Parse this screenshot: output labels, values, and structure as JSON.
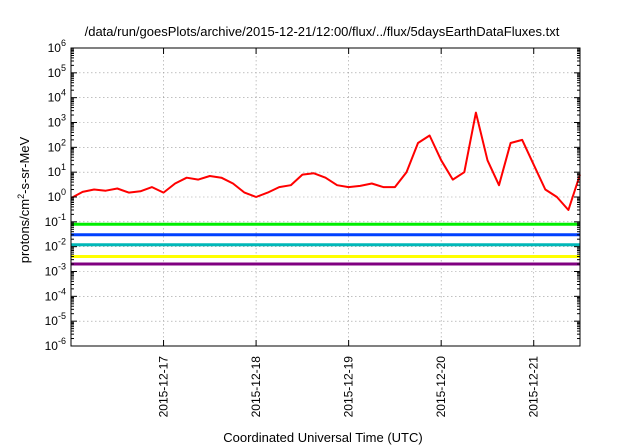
{
  "chart_data": {
    "type": "line",
    "title": "/data/run/goesPlots/archive/2015-12-21/12:00/flux/../flux/5daysEarthDataFluxes.txt",
    "xlabel": "Coordinated Universal Time (UTC)",
    "ylabel": {
      "prefix": "protons/cm",
      "sup": "2",
      "suffix": "-s-sr-MeV"
    },
    "y_scale": "log",
    "ylim_exponents": [
      -6,
      6
    ],
    "y_tick_base": "10",
    "y_tick_exponents": [
      "-6",
      "-5",
      "-4",
      "-3",
      "-2",
      "-1",
      "0",
      "1",
      "2",
      "3",
      "4",
      "5",
      "6"
    ],
    "xlim": [
      "2015-12-16T00:00",
      "2015-12-21T12:00"
    ],
    "x_ticks": [
      {
        "label": "2015-12-17",
        "value": "2015-12-17T00:00"
      },
      {
        "label": "2015-12-18",
        "value": "2015-12-18T00:00"
      },
      {
        "label": "2015-12-19",
        "value": "2015-12-19T00:00"
      },
      {
        "label": "2015-12-20",
        "value": "2015-12-20T00:00"
      },
      {
        "label": "2015-12-21",
        "value": "2015-12-21T00:00"
      }
    ],
    "grid": true,
    "legend": "none",
    "series": [
      {
        "color": "#ff0000",
        "x": [
          "2015-12-16T00:00",
          "2015-12-16T03:00",
          "2015-12-16T06:00",
          "2015-12-16T09:00",
          "2015-12-16T12:00",
          "2015-12-16T15:00",
          "2015-12-16T18:00",
          "2015-12-16T21:00",
          "2015-12-17T00:00",
          "2015-12-17T03:00",
          "2015-12-17T06:00",
          "2015-12-17T09:00",
          "2015-12-17T12:00",
          "2015-12-17T15:00",
          "2015-12-17T18:00",
          "2015-12-17T21:00",
          "2015-12-18T00:00",
          "2015-12-18T03:00",
          "2015-12-18T06:00",
          "2015-12-18T09:00",
          "2015-12-18T12:00",
          "2015-12-18T15:00",
          "2015-12-18T18:00",
          "2015-12-18T21:00",
          "2015-12-19T00:00",
          "2015-12-19T03:00",
          "2015-12-19T06:00",
          "2015-12-19T09:00",
          "2015-12-19T12:00",
          "2015-12-19T15:00",
          "2015-12-19T18:00",
          "2015-12-19T21:00",
          "2015-12-20T00:00",
          "2015-12-20T03:00",
          "2015-12-20T06:00",
          "2015-12-20T09:00",
          "2015-12-20T12:00",
          "2015-12-20T15:00",
          "2015-12-20T18:00",
          "2015-12-20T21:00",
          "2015-12-21T00:00",
          "2015-12-21T03:00",
          "2015-12-21T06:00",
          "2015-12-21T09:00",
          "2015-12-21T12:00"
        ],
        "y": [
          0.9,
          1.6,
          2.0,
          1.8,
          2.2,
          1.5,
          1.7,
          2.5,
          1.5,
          3.5,
          6.0,
          5.0,
          7.0,
          6.0,
          3.5,
          1.5,
          1.0,
          1.5,
          2.5,
          3.0,
          8.0,
          9.0,
          6.0,
          3.0,
          2.5,
          2.8,
          3.5,
          2.5,
          2.5,
          10.0,
          150.0,
          300.0,
          30.0,
          5.0,
          10.0,
          2500.0,
          30.0,
          3.0,
          150.0,
          200.0,
          20.0,
          2.0,
          1.0,
          0.3,
          8.0
        ]
      },
      {
        "color": "#00ee00",
        "x": [
          "2015-12-16T00:00",
          "2015-12-21T12:00"
        ],
        "y": [
          0.08,
          0.08
        ]
      },
      {
        "color": "#0040ff",
        "x": [
          "2015-12-16T00:00",
          "2015-12-21T12:00"
        ],
        "y": [
          0.03,
          0.03
        ]
      },
      {
        "color": "#00b8b8",
        "x": [
          "2015-12-16T00:00",
          "2015-12-21T12:00"
        ],
        "y": [
          0.012,
          0.012
        ]
      },
      {
        "color": "#ffff00",
        "x": [
          "2015-12-16T00:00",
          "2015-12-21T12:00"
        ],
        "y": [
          0.004,
          0.004
        ]
      },
      {
        "color": "#800080",
        "x": [
          "2015-12-16T00:00",
          "2015-12-21T12:00"
        ],
        "y": [
          0.002,
          0.002
        ]
      }
    ]
  }
}
